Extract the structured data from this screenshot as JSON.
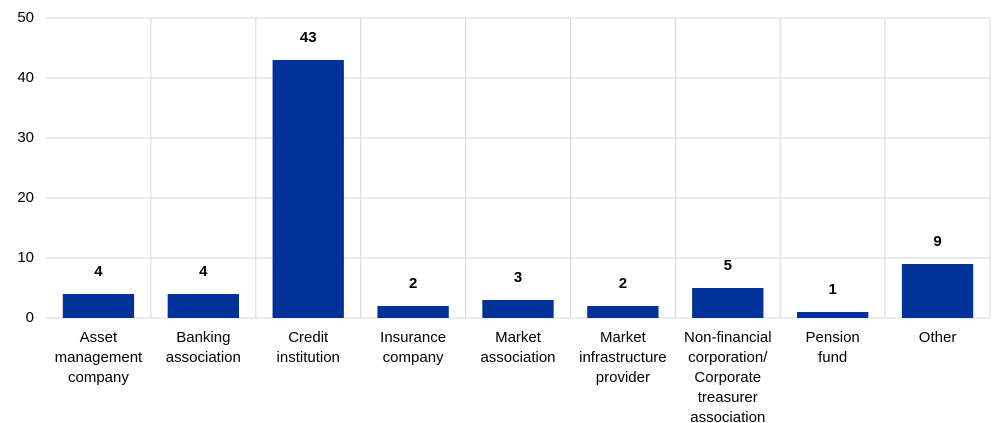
{
  "chart_data": {
    "type": "bar",
    "categories": [
      "Asset\nmanagement\ncompany",
      "Banking\nassociation",
      "Credit\ninstitution",
      "Insurance\ncompany",
      "Market\nassociation",
      "Market\ninfrastructure\nprovider",
      "Non-financial\ncorporation/\nCorporate\ntreasurer\nassociation",
      "Pension\nfund",
      "Other"
    ],
    "values": [
      4,
      4,
      43,
      2,
      3,
      2,
      5,
      1,
      9
    ],
    "color": "#003299",
    "ylim": [
      0,
      50
    ],
    "yticks": [
      0,
      10,
      20,
      30,
      40,
      50
    ],
    "grid": true
  }
}
